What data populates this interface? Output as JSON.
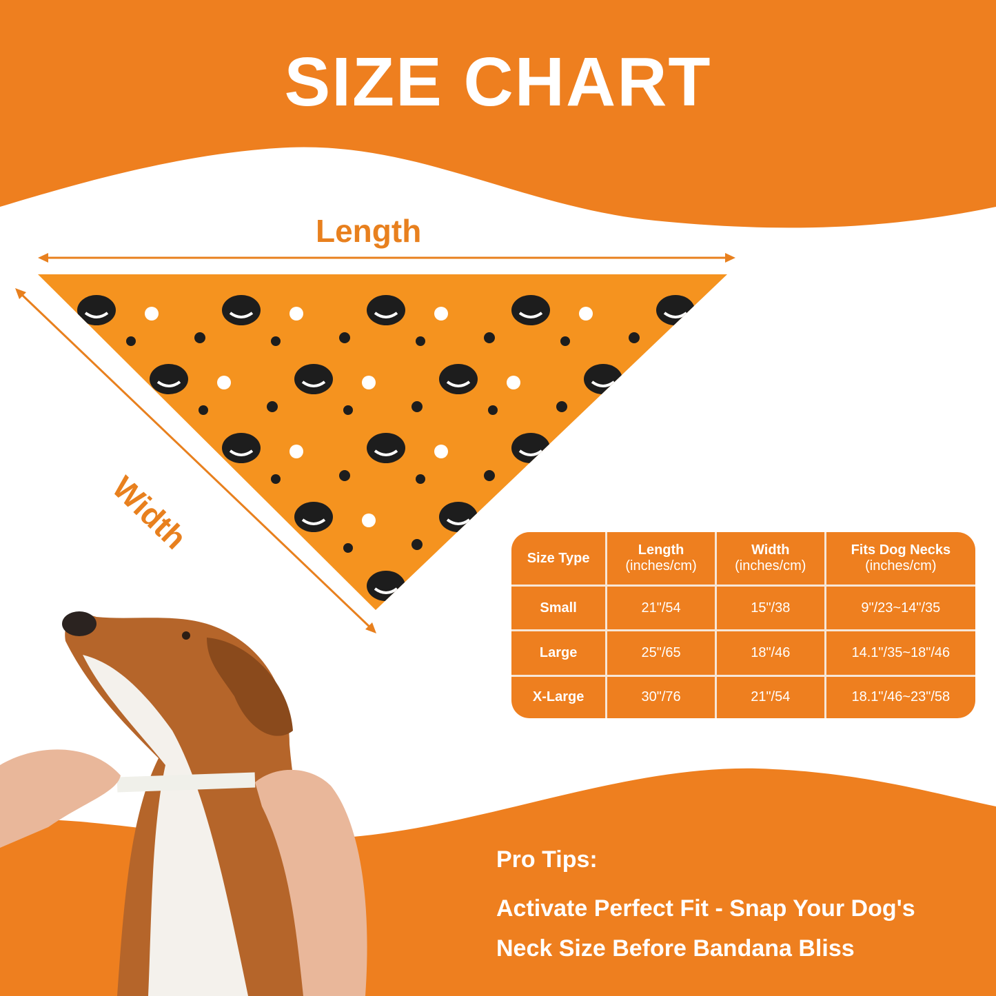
{
  "title": "SIZE CHART",
  "diagram": {
    "length_label": "Length",
    "width_label": "Width"
  },
  "colors": {
    "brand_orange": "#ee7f1f",
    "bandana_orange": "#f5931f",
    "text_orange": "#e8801e"
  },
  "table": {
    "headers": [
      {
        "title": "Size Type",
        "unit": ""
      },
      {
        "title": "Length",
        "unit": "(inches/cm)"
      },
      {
        "title": "Width",
        "unit": "(inches/cm)"
      },
      {
        "title": "Fits Dog Necks",
        "unit": "(inches/cm)"
      }
    ],
    "rows": [
      [
        "Small",
        "21\"/54",
        "15\"/38",
        "9\"/23~14\"/35"
      ],
      [
        "Large",
        "25\"/65",
        "18\"/46",
        "14.1\"/35~18\"/46"
      ],
      [
        "X-Large",
        "30\"/76",
        "21\"/54",
        "18.1\"/46~23\"/58"
      ]
    ]
  },
  "tips": {
    "heading": "Pro Tips:",
    "lines": [
      "Activate Perfect Fit - Snap Your Dog's",
      "Neck Size Before Bandana Bliss"
    ]
  }
}
